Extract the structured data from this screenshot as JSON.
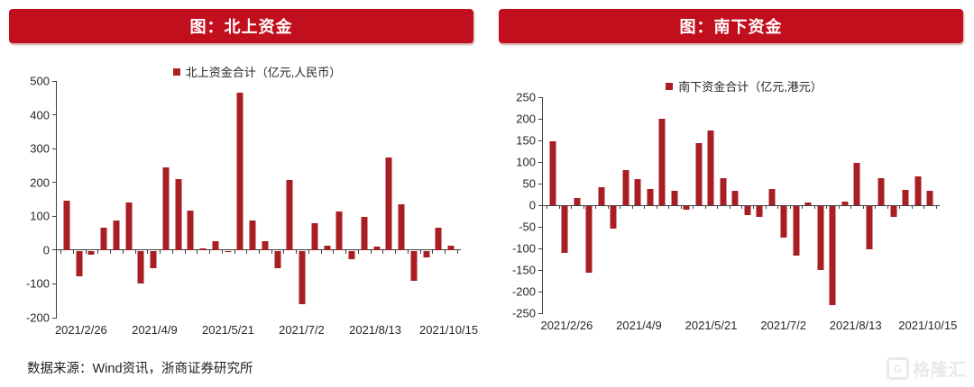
{
  "page": {
    "source_note": "数据来源：Wind资讯，浙商证券研究所",
    "watermark": "格隆汇",
    "watermark_icon": "G"
  },
  "colors": {
    "banner_red": "#c20f1e",
    "bar_red": "#a81e23",
    "axis": "#404040",
    "text": "#262626",
    "watermark_gray": "#e9e9e9"
  },
  "chart_data": [
    {
      "type": "bar",
      "title": "图：北上资金",
      "legend": "北上资金合计（亿元,人民币）",
      "ylim": [
        -200,
        500
      ],
      "yticks": [
        500,
        400,
        300,
        200,
        100,
        0,
        -100,
        -200
      ],
      "grid": false,
      "legend_position": "top-center",
      "x_labels": [
        "2021/2/26",
        "2021/4/9",
        "2021/5/21",
        "2021/7/2",
        "2021/8/13",
        "2021/10/15"
      ],
      "values": [
        145,
        -75,
        -10,
        65,
        88,
        140,
        -97,
        -50,
        245,
        210,
        118,
        5,
        25,
        -3,
        465,
        88,
        26,
        -50,
        207,
        -158,
        80,
        13,
        115,
        -25,
        98,
        11,
        275,
        136,
        -88,
        -18,
        66,
        13
      ]
    },
    {
      "type": "bar",
      "title": "图：南下资金",
      "legend": "南下资金合计（亿元,港元）",
      "ylim": [
        -250,
        250
      ],
      "yticks": [
        250,
        200,
        150,
        100,
        50,
        0,
        -50,
        -100,
        -150,
        -200,
        -250
      ],
      "grid": false,
      "legend_position": "top-center",
      "x_labels": [
        "2021/2/26",
        "2021/4/9",
        "2021/5/21",
        "2021/7/2",
        "2021/8/13",
        "2021/10/15"
      ],
      "values": [
        148,
        -108,
        17,
        -155,
        42,
        -52,
        82,
        60,
        37,
        201,
        33,
        -8,
        143,
        172,
        63,
        33,
        -21,
        -24,
        38,
        -73,
        -115,
        7,
        -147,
        -230,
        9,
        97,
        -100,
        62,
        -25,
        35,
        66,
        33
      ]
    }
  ]
}
